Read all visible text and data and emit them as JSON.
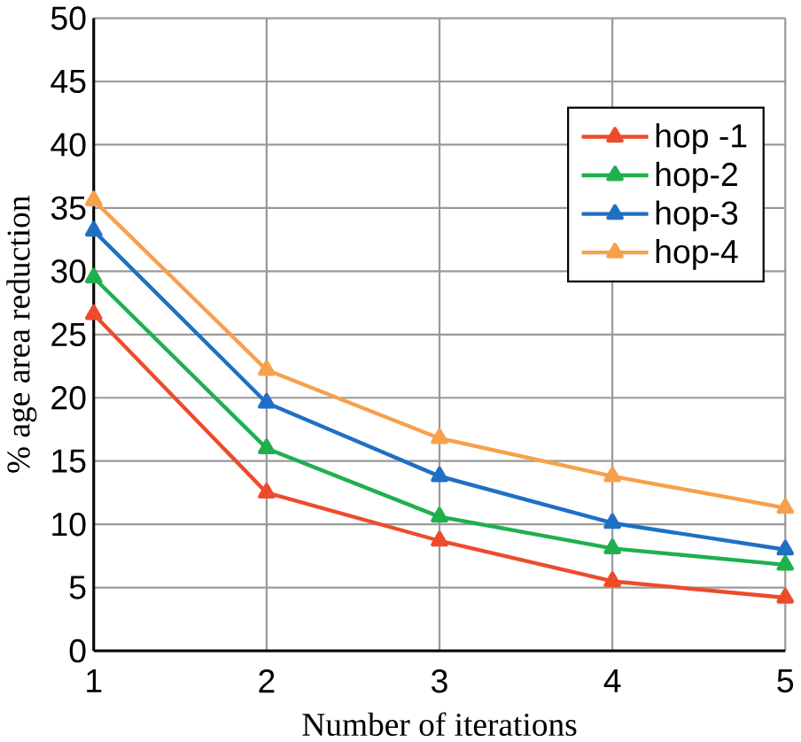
{
  "chart_data": {
    "type": "line",
    "xlabel": "Number of iterations",
    "ylabel": "% age area reduction",
    "x": [
      1,
      2,
      3,
      4,
      5
    ],
    "series": [
      {
        "name": "hop -1",
        "color": "#ee4b2b",
        "values": [
          26.6,
          12.5,
          8.7,
          5.5,
          4.2
        ]
      },
      {
        "name": "hop-2",
        "color": "#1fb04e",
        "values": [
          29.5,
          16.0,
          10.6,
          8.1,
          6.8
        ]
      },
      {
        "name": "hop-3",
        "color": "#1f6fc5",
        "values": [
          33.2,
          19.6,
          13.8,
          10.1,
          8.0
        ]
      },
      {
        "name": "hop-4",
        "color": "#f7a04b",
        "values": [
          35.6,
          22.2,
          16.8,
          13.8,
          11.3
        ]
      }
    ],
    "xlim": [
      1,
      5
    ],
    "xticks": [
      1,
      2,
      3,
      4,
      5
    ],
    "ylim": [
      0,
      50
    ],
    "yticks": [
      0,
      5,
      10,
      15,
      20,
      25,
      30,
      35,
      40,
      45,
      50
    ],
    "grid": true,
    "legend": "top right",
    "marker": "triangle",
    "line_style": "solid"
  }
}
